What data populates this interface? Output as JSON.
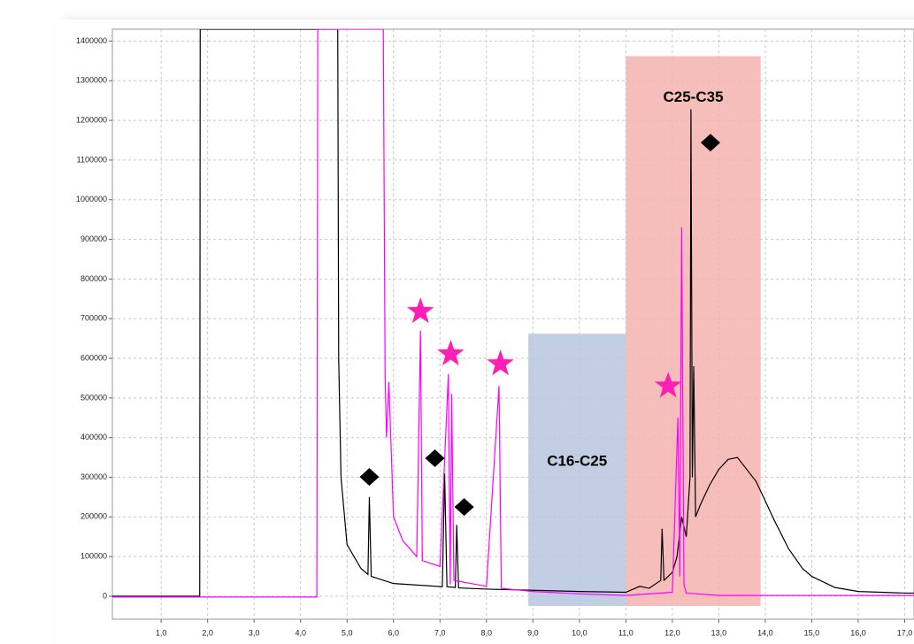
{
  "chart_data": {
    "type": "line",
    "xlim": [
      -0.05,
      17.2
    ],
    "ylim": [
      -58000,
      1430000
    ],
    "xticks": [
      {
        "value": 1,
        "label": "1,0"
      },
      {
        "value": 2,
        "label": "2,0"
      },
      {
        "value": 3,
        "label": "3,0"
      },
      {
        "value": 4,
        "label": "4,0"
      },
      {
        "value": 5,
        "label": "5,0"
      },
      {
        "value": 6,
        "label": "6,0"
      },
      {
        "value": 7,
        "label": "7,0"
      },
      {
        "value": 8,
        "label": "8,0"
      },
      {
        "value": 9,
        "label": "9,0"
      },
      {
        "value": 10,
        "label": "10,0"
      },
      {
        "value": 11,
        "label": "11,0"
      },
      {
        "value": 12,
        "label": "12,0"
      },
      {
        "value": 13,
        "label": "13,0"
      },
      {
        "value": 14,
        "label": "14,0"
      },
      {
        "value": 15,
        "label": "15,0"
      },
      {
        "value": 16,
        "label": "16,0"
      },
      {
        "value": 17,
        "label": "17,0"
      }
    ],
    "yticks": [
      0,
      100000,
      200000,
      300000,
      400000,
      500000,
      600000,
      700000,
      800000,
      900000,
      1000000,
      1100000,
      1200000,
      1300000,
      1400000
    ],
    "grid": true,
    "regions": [
      {
        "label": "C16-C25",
        "x": [
          8.9,
          11.0
        ],
        "y": [
          -24500,
          662000
        ],
        "color": "#b7c6de"
      },
      {
        "label": "C25-C35",
        "x": [
          11.0,
          13.9
        ],
        "y": [
          -24500,
          1362000
        ],
        "color": "#f5b3ae"
      }
    ],
    "series": [
      {
        "color": "#000000",
        "x": [
          -0.05,
          1.83,
          1.84,
          4.8,
          4.82,
          4.87,
          5.0,
          5.3,
          5.45,
          5.48,
          5.52,
          6.0,
          7.05,
          7.1,
          7.15,
          7.33,
          7.36,
          7.4,
          8.0,
          9.0,
          10.0,
          11.0,
          11.3,
          11.5,
          11.75,
          11.78,
          11.82,
          12.0,
          12.1,
          12.2,
          12.3,
          12.38,
          12.4,
          12.43,
          12.46,
          12.5,
          12.6,
          12.8,
          13.0,
          13.2,
          13.4,
          13.6,
          13.8,
          14.0,
          14.2,
          14.5,
          14.8,
          15.0,
          15.5,
          16.0,
          17.0,
          17.2
        ],
        "values": [
          0,
          0,
          1430000,
          1430000,
          600000,
          300000,
          130000,
          70000,
          55000,
          250000,
          50000,
          32000,
          24000,
          310000,
          24000,
          22000,
          180000,
          21000,
          18000,
          15000,
          12000,
          10000,
          25000,
          20000,
          40000,
          170000,
          40000,
          60000,
          100000,
          200000,
          150000,
          300000,
          1228000,
          300000,
          580000,
          200000,
          230000,
          280000,
          320000,
          345000,
          350000,
          320000,
          290000,
          240000,
          190000,
          120000,
          70000,
          50000,
          22000,
          12000,
          8000,
          8000
        ]
      },
      {
        "color": "#ff00ff",
        "x": [
          -0.05,
          4.35,
          4.37,
          5.78,
          5.82,
          5.85,
          5.9,
          6.0,
          6.2,
          6.5,
          6.58,
          6.62,
          7.0,
          7.18,
          7.22,
          7.25,
          7.3,
          8.0,
          8.27,
          8.32,
          9.0,
          10.0,
          11.0,
          12.0,
          12.12,
          12.16,
          12.2,
          12.25,
          12.3,
          13.0,
          17.2
        ],
        "values": [
          -2000,
          -2000,
          1430000,
          1430000,
          550000,
          400000,
          540000,
          200000,
          140000,
          100000,
          670000,
          90000,
          75000,
          560000,
          30000,
          510000,
          40000,
          25000,
          530000,
          20000,
          12000,
          6000,
          2000,
          10000,
          450000,
          50000,
          930000,
          30000,
          8000,
          2000,
          2000
        ]
      }
    ],
    "star_markers": {
      "color": "#ff1fb4",
      "x": [
        6.58,
        7.23,
        8.3,
        11.91
      ],
      "y": [
        718000,
        611000,
        586000,
        530000
      ]
    },
    "diamond_markers": {
      "color": "#000000",
      "x": [
        5.48,
        6.89,
        7.52,
        12.82
      ],
      "y": [
        301000,
        348000,
        225000,
        1144000
      ]
    }
  }
}
